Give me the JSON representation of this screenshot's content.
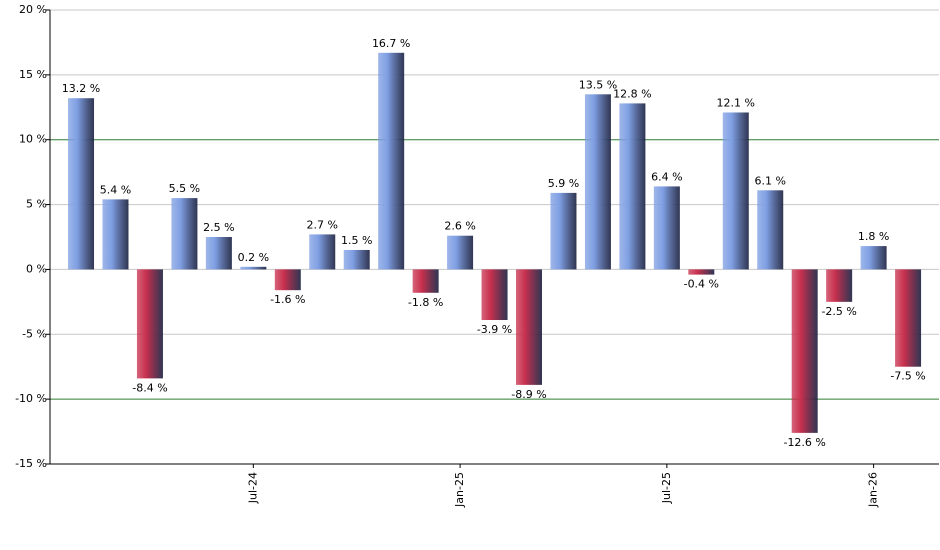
{
  "chart_data": {
    "type": "bar",
    "categories": [
      null,
      null,
      null,
      null,
      null,
      "Jul-24",
      null,
      null,
      null,
      null,
      null,
      "Jan-25",
      null,
      null,
      null,
      null,
      null,
      "Jul-25",
      null,
      null,
      null,
      null,
      null,
      "Jan-26",
      null
    ],
    "values": [
      13.2,
      5.4,
      -8.4,
      5.5,
      2.5,
      0.2,
      -1.6,
      2.7,
      1.5,
      16.7,
      -1.8,
      2.6,
      -3.9,
      -8.9,
      5.9,
      13.5,
      12.8,
      6.4,
      -0.4,
      12.1,
      6.1,
      -12.6,
      -2.5,
      1.8,
      -7.5
    ],
    "value_labels": [
      "13.2 %",
      "5.4 %",
      "-8.4 %",
      "5.5 %",
      "2.5 %",
      "0.2 %",
      "-1.6 %",
      "2.7 %",
      "1.5 %",
      "16.7 %",
      "-1.8 %",
      "2.6 %",
      "-3.9 %",
      "-8.9 %",
      "5.9 %",
      "13.5 %",
      "12.8 %",
      "6.4 %",
      "-0.4 %",
      "12.1 %",
      "6.1 %",
      "-12.6 %",
      "-2.5 %",
      "1.8 %",
      "-7.5 %"
    ],
    "positive_color": "#7f9fe3",
    "negative_color": "#c8304e",
    "ylim": [
      -15,
      20
    ],
    "yticks": [
      {
        "value": -15,
        "label": "-15 %"
      },
      {
        "value": -10,
        "label": "-10 %"
      },
      {
        "value": -5,
        "label": "-5 %"
      },
      {
        "value": 0,
        "label": "0 %"
      },
      {
        "value": 5,
        "label": "5 %"
      },
      {
        "value": 10,
        "label": "10 %"
      },
      {
        "value": 15,
        "label": "15 %"
      },
      {
        "value": 20,
        "label": "20 %"
      }
    ],
    "grid": true,
    "highlight_ticks": [
      10,
      -10
    ],
    "highlight_color": "#2e7d32"
  }
}
